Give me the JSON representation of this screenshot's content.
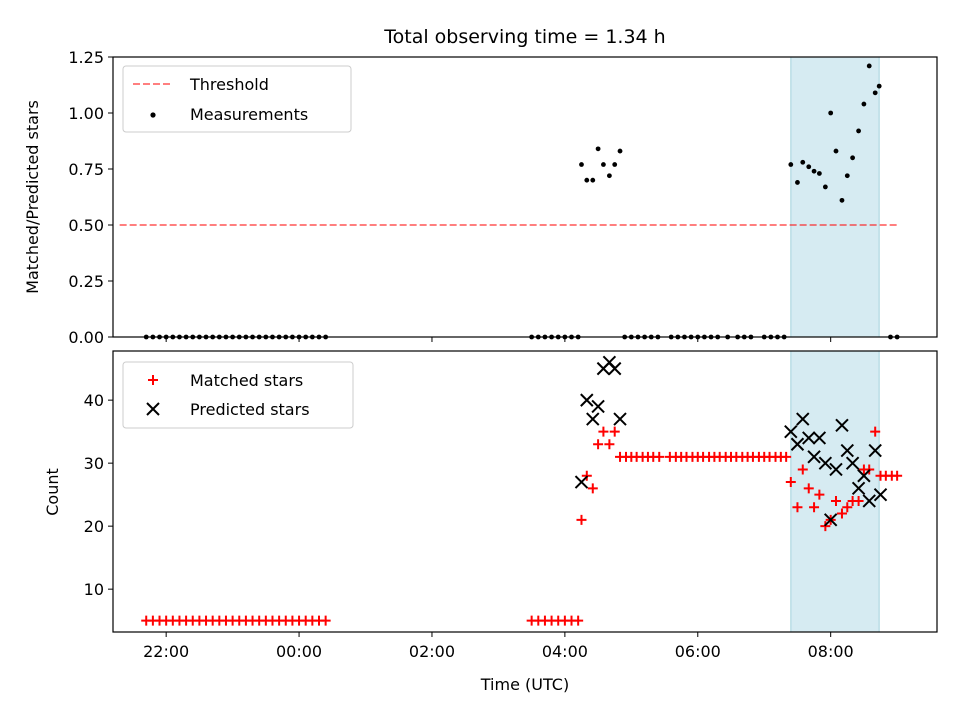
{
  "title": "Total observing time = 1.34 h",
  "chart_data": [
    {
      "type": "scatter",
      "ylabel": "Matched/Predicted stars",
      "ylim": [
        0,
        1.25
      ],
      "yticks": [
        "0.00",
        "0.25",
        "0.50",
        "0.75",
        "1.00",
        "1.25"
      ],
      "xlim": [
        -2.8,
        9.6
      ],
      "legend": "top-left",
      "highlight_span": {
        "x": [
          7.4,
          8.73
        ],
        "color": "#add8e6"
      },
      "threshold": {
        "name": "Threshold",
        "value": 0.5,
        "x": [
          -2.7,
          9.0
        ],
        "color": "#ff0000"
      },
      "measurements_name": "Measurements",
      "series": [
        {
          "name": "Measurements",
          "color": "#000000",
          "points": [
            [
              -2.3,
              0
            ],
            [
              -2.2,
              0
            ],
            [
              -2.1,
              0
            ],
            [
              -2.0,
              0
            ],
            [
              -1.9,
              0
            ],
            [
              -1.8,
              0
            ],
            [
              -1.7,
              0
            ],
            [
              -1.6,
              0
            ],
            [
              -1.5,
              0
            ],
            [
              -1.4,
              0
            ],
            [
              -1.3,
              0
            ],
            [
              -1.2,
              0
            ],
            [
              -1.1,
              0
            ],
            [
              -1.0,
              0
            ],
            [
              -0.9,
              0
            ],
            [
              -0.8,
              0
            ],
            [
              -0.7,
              0
            ],
            [
              -0.6,
              0
            ],
            [
              -0.5,
              0
            ],
            [
              -0.4,
              0
            ],
            [
              -0.3,
              0
            ],
            [
              -0.2,
              0
            ],
            [
              -0.1,
              0
            ],
            [
              0.0,
              0
            ],
            [
              0.1,
              0
            ],
            [
              0.2,
              0
            ],
            [
              0.3,
              0
            ],
            [
              0.4,
              0
            ],
            [
              3.5,
              0
            ],
            [
              3.6,
              0
            ],
            [
              3.7,
              0
            ],
            [
              3.8,
              0
            ],
            [
              3.9,
              0
            ],
            [
              4.0,
              0
            ],
            [
              4.1,
              0
            ],
            [
              4.2,
              0
            ],
            [
              4.25,
              0.77
            ],
            [
              4.33,
              0.7
            ],
            [
              4.42,
              0.7
            ],
            [
              4.5,
              0.84
            ],
            [
              4.58,
              0.77
            ],
            [
              4.67,
              0.72
            ],
            [
              4.75,
              0.77
            ],
            [
              4.83,
              0.83
            ],
            [
              4.9,
              0
            ],
            [
              5.0,
              0
            ],
            [
              5.1,
              0
            ],
            [
              5.2,
              0
            ],
            [
              5.3,
              0
            ],
            [
              5.4,
              0
            ],
            [
              5.6,
              0
            ],
            [
              5.7,
              0
            ],
            [
              5.8,
              0
            ],
            [
              5.9,
              0
            ],
            [
              6.0,
              0
            ],
            [
              6.1,
              0
            ],
            [
              6.2,
              0
            ],
            [
              6.3,
              0
            ],
            [
              6.45,
              0
            ],
            [
              6.6,
              0
            ],
            [
              6.7,
              0
            ],
            [
              6.8,
              0
            ],
            [
              7.0,
              0
            ],
            [
              7.1,
              0
            ],
            [
              7.2,
              0
            ],
            [
              7.3,
              0
            ],
            [
              7.4,
              0.77
            ],
            [
              7.5,
              0.69
            ],
            [
              7.58,
              0.78
            ],
            [
              7.67,
              0.76
            ],
            [
              7.75,
              0.74
            ],
            [
              7.83,
              0.73
            ],
            [
              7.92,
              0.67
            ],
            [
              8.0,
              1.0
            ],
            [
              8.08,
              0.83
            ],
            [
              8.17,
              0.61
            ],
            [
              8.25,
              0.72
            ],
            [
              8.33,
              0.8
            ],
            [
              8.42,
              0.92
            ],
            [
              8.5,
              1.04
            ],
            [
              8.58,
              1.21
            ],
            [
              8.67,
              1.09
            ],
            [
              8.73,
              1.12
            ],
            [
              8.9,
              0
            ],
            [
              9.0,
              0
            ]
          ]
        }
      ]
    },
    {
      "type": "scatter",
      "xlabel": "Time (UTC)",
      "ylabel": "Count",
      "ylim": [
        3.2,
        47.8
      ],
      "yticks": [
        "10",
        "20",
        "30",
        "40"
      ],
      "xticks": [
        "22:00",
        "00:00",
        "02:00",
        "04:00",
        "06:00",
        "08:00"
      ],
      "xlim": [
        -2.8,
        9.6
      ],
      "legend": "top-left",
      "highlight_span": {
        "x": [
          7.4,
          8.73
        ],
        "color": "#add8e6"
      },
      "series": [
        {
          "name": "Matched stars",
          "marker": "plus",
          "color": "#ff0000",
          "points": [
            [
              -2.3,
              5
            ],
            [
              -2.2,
              5
            ],
            [
              -2.1,
              5
            ],
            [
              -2.0,
              5
            ],
            [
              -1.9,
              5
            ],
            [
              -1.8,
              5
            ],
            [
              -1.7,
              5
            ],
            [
              -1.6,
              5
            ],
            [
              -1.5,
              5
            ],
            [
              -1.4,
              5
            ],
            [
              -1.3,
              5
            ],
            [
              -1.2,
              5
            ],
            [
              -1.1,
              5
            ],
            [
              -1.0,
              5
            ],
            [
              -0.9,
              5
            ],
            [
              -0.8,
              5
            ],
            [
              -0.7,
              5
            ],
            [
              -0.6,
              5
            ],
            [
              -0.5,
              5
            ],
            [
              -0.4,
              5
            ],
            [
              -0.3,
              5
            ],
            [
              -0.2,
              5
            ],
            [
              -0.1,
              5
            ],
            [
              0.0,
              5
            ],
            [
              0.1,
              5
            ],
            [
              0.2,
              5
            ],
            [
              0.3,
              5
            ],
            [
              0.4,
              5
            ],
            [
              3.5,
              5
            ],
            [
              3.6,
              5
            ],
            [
              3.7,
              5
            ],
            [
              3.8,
              5
            ],
            [
              3.9,
              5
            ],
            [
              4.0,
              5
            ],
            [
              4.1,
              5
            ],
            [
              4.2,
              5
            ],
            [
              4.25,
              21
            ],
            [
              4.33,
              28
            ],
            [
              4.42,
              26
            ],
            [
              4.5,
              33
            ],
            [
              4.58,
              35
            ],
            [
              4.67,
              33
            ],
            [
              4.75,
              35
            ],
            [
              4.83,
              31
            ],
            [
              4.92,
              31
            ],
            [
              5.0,
              31
            ],
            [
              5.08,
              31
            ],
            [
              5.17,
              31
            ],
            [
              5.25,
              31
            ],
            [
              5.33,
              31
            ],
            [
              5.42,
              31
            ],
            [
              5.58,
              31
            ],
            [
              5.67,
              31
            ],
            [
              5.75,
              31
            ],
            [
              5.83,
              31
            ],
            [
              5.92,
              31
            ],
            [
              6.0,
              31
            ],
            [
              6.08,
              31
            ],
            [
              6.17,
              31
            ],
            [
              6.25,
              31
            ],
            [
              6.33,
              31
            ],
            [
              6.42,
              31
            ],
            [
              6.5,
              31
            ],
            [
              6.58,
              31
            ],
            [
              6.67,
              31
            ],
            [
              6.75,
              31
            ],
            [
              6.83,
              31
            ],
            [
              6.92,
              31
            ],
            [
              7.0,
              31
            ],
            [
              7.08,
              31
            ],
            [
              7.17,
              31
            ],
            [
              7.25,
              31
            ],
            [
              7.33,
              31
            ],
            [
              7.4,
              27
            ],
            [
              7.5,
              23
            ],
            [
              7.58,
              29
            ],
            [
              7.67,
              26
            ],
            [
              7.75,
              23
            ],
            [
              7.83,
              25
            ],
            [
              7.92,
              20
            ],
            [
              8.0,
              21
            ],
            [
              8.08,
              24
            ],
            [
              8.17,
              22
            ],
            [
              8.25,
              23
            ],
            [
              8.33,
              24
            ],
            [
              8.42,
              24
            ],
            [
              8.5,
              29
            ],
            [
              8.58,
              29
            ],
            [
              8.67,
              35
            ],
            [
              8.75,
              28
            ],
            [
              8.83,
              28
            ],
            [
              8.92,
              28
            ],
            [
              9.0,
              28
            ]
          ]
        },
        {
          "name": "Predicted stars",
          "marker": "x",
          "color": "#000000",
          "points": [
            [
              4.25,
              27
            ],
            [
              4.33,
              40
            ],
            [
              4.42,
              37
            ],
            [
              4.5,
              39
            ],
            [
              4.58,
              45
            ],
            [
              4.67,
              46
            ],
            [
              4.75,
              45
            ],
            [
              4.83,
              37
            ],
            [
              7.4,
              35
            ],
            [
              7.5,
              33
            ],
            [
              7.58,
              37
            ],
            [
              7.67,
              34
            ],
            [
              7.75,
              31
            ],
            [
              7.83,
              34
            ],
            [
              7.92,
              30
            ],
            [
              8.0,
              21
            ],
            [
              8.08,
              29
            ],
            [
              8.17,
              36
            ],
            [
              8.25,
              32
            ],
            [
              8.33,
              30
            ],
            [
              8.42,
              26
            ],
            [
              8.5,
              28
            ],
            [
              8.58,
              24
            ],
            [
              8.67,
              32
            ],
            [
              8.75,
              25
            ]
          ]
        }
      ]
    }
  ]
}
